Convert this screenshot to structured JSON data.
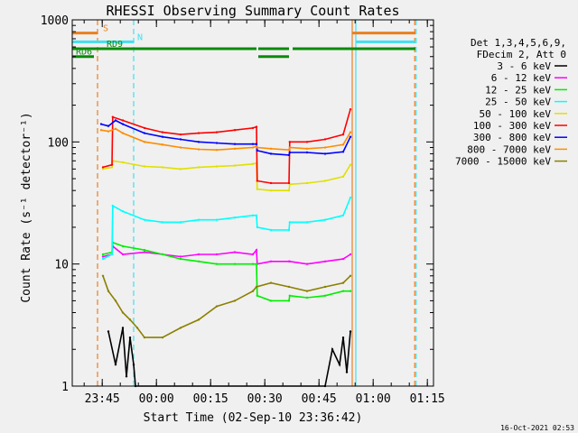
{
  "chart_data": {
    "type": "line",
    "title": "RHESSI Observing Summary Count Rates",
    "xlabel": "Start Time (02-Sep-10 23:36:42)",
    "ylabel": "Count Rate (s⁻¹ detector⁻¹)",
    "yscale": "log",
    "ylim": [
      1,
      1000
    ],
    "xlim_minutes": [
      0,
      100
    ],
    "grid": false,
    "legend_placement": "right",
    "legend_header": [
      "Det 1,3,4,5,6,9,",
      "FDecim 2, Att 0"
    ],
    "timestamp": "16-Oct-2021 02:53",
    "x_ticks": [
      {
        "label": "23:45",
        "min": 8.3
      },
      {
        "label": "00:00",
        "min": 23.3
      },
      {
        "label": "00:15",
        "min": 38.3
      },
      {
        "label": "00:30",
        "min": 53.3
      },
      {
        "label": "00:45",
        "min": 68.3
      },
      {
        "label": "01:00",
        "min": 83.3
      },
      {
        "label": "01:15",
        "min": 98.3
      }
    ],
    "y_ticks": [
      {
        "label": "1",
        "value": 1
      },
      {
        "label": "10",
        "value": 10
      },
      {
        "label": "100",
        "value": 100
      },
      {
        "label": "1000",
        "value": 1000
      }
    ],
    "flag_bars": [
      {
        "label": "S",
        "color": "#e88020",
        "segments": [
          [
            0,
            7
          ],
          [
            77.5,
            95
          ]
        ],
        "level": 780,
        "label_min": 8.5
      },
      {
        "label": "N",
        "color": "#40e0f0",
        "segments": [
          [
            0,
            17
          ],
          [
            78.5,
            95
          ]
        ],
        "level": 660,
        "label_min": 18
      },
      {
        "label": "RD9",
        "color": "#0a8a0a",
        "segments": [
          [
            0,
            51
          ],
          [
            51.5,
            60
          ],
          [
            61,
            95
          ]
        ],
        "level": 580,
        "label_min": 9.5
      },
      {
        "label": "RD6",
        "color": "#0a8a0a",
        "segments": [
          [
            0,
            6
          ],
          [
            51.5,
            60
          ]
        ],
        "level": 500,
        "label_min": 1
      }
    ],
    "vertical_markers": [
      {
        "min": 7,
        "color": "#e88020"
      },
      {
        "min": 17,
        "color": "#40e0f0"
      },
      {
        "min": 77.5,
        "color": "#e88020"
      },
      {
        "min": 78.5,
        "color": "#40e0f0"
      },
      {
        "min": 94.8,
        "color": "#e88020"
      },
      {
        "min": 95.2,
        "color": "#40e0f0"
      }
    ],
    "series": [
      {
        "name": "3 - 6 keV",
        "color": "#000000",
        "x": [
          10,
          12,
          14,
          15,
          16,
          17,
          17.5,
          70,
          72,
          74,
          75,
          76,
          77
        ],
        "y": [
          2.8,
          1.5,
          3,
          1.2,
          2.5,
          1.5,
          1,
          1,
          2,
          1.5,
          2.5,
          1.3,
          2.8
        ]
      },
      {
        "name": "6 - 12 keV",
        "color": "#ff00ff",
        "x": [
          8.5,
          11,
          11.2,
          14,
          20,
          25,
          30,
          35,
          40,
          45,
          50,
          51,
          51.2,
          55,
          60,
          60.2,
          65,
          70,
          75,
          77
        ],
        "y": [
          11.5,
          12,
          14,
          12,
          12.5,
          12,
          11.5,
          12,
          12,
          12.5,
          12,
          13,
          10,
          10.5,
          10.5,
          10.5,
          10,
          10.5,
          11,
          12
        ]
      },
      {
        "name": "12 - 25 keV",
        "color": "#00ee00",
        "x": [
          8.5,
          11,
          11.2,
          14,
          20,
          25,
          30,
          35,
          40,
          45,
          50,
          51,
          51.2,
          55,
          60,
          60.2,
          65,
          70,
          75,
          77
        ],
        "y": [
          12,
          12.5,
          15,
          14,
          13,
          12,
          11,
          10.5,
          10,
          10,
          10,
          10,
          5.5,
          5,
          5,
          5.5,
          5.3,
          5.5,
          6,
          6
        ]
      },
      {
        "name": "25 - 50 keV",
        "color": "#00ffff",
        "x": [
          8.5,
          11,
          11.2,
          14,
          20,
          25,
          30,
          35,
          40,
          45,
          50,
          51,
          51.2,
          55,
          60,
          60.2,
          65,
          70,
          75,
          77
        ],
        "y": [
          11,
          12,
          30,
          27,
          23,
          22,
          22,
          23,
          23,
          24,
          25,
          25,
          20,
          19,
          19,
          22,
          22,
          23,
          25,
          35
        ]
      },
      {
        "name": "50 - 100 keV",
        "color": "#e0e000",
        "x": [
          8.5,
          11,
          11.2,
          14,
          20,
          25,
          30,
          35,
          40,
          45,
          50,
          51,
          51.2,
          55,
          60,
          60.2,
          65,
          70,
          75,
          77
        ],
        "y": [
          60,
          62,
          70,
          68,
          63,
          62,
          60,
          62,
          63,
          64,
          66,
          67,
          41,
          40,
          40,
          45,
          46,
          48,
          52,
          65
        ]
      },
      {
        "name": "100 - 300 keV",
        "color": "#ff0000",
        "x": [
          8.5,
          11,
          11.2,
          14,
          20,
          25,
          30,
          35,
          40,
          45,
          50,
          51,
          51.2,
          55,
          60,
          60.2,
          65,
          70,
          75,
          77
        ],
        "y": [
          62,
          65,
          160,
          150,
          130,
          120,
          115,
          118,
          120,
          125,
          130,
          133,
          48,
          46,
          46,
          100,
          100,
          105,
          115,
          185
        ]
      },
      {
        "name": "300 - 800 keV",
        "color": "#0000ff",
        "x": [
          8,
          10,
          12,
          14,
          20,
          25,
          30,
          35,
          40,
          45,
          50,
          51,
          51.2,
          55,
          60,
          60.2,
          65,
          70,
          75,
          77
        ],
        "y": [
          140,
          135,
          150,
          140,
          118,
          110,
          105,
          100,
          98,
          96,
          96,
          96,
          85,
          80,
          78,
          82,
          82,
          80,
          83,
          110
        ]
      },
      {
        "name": "800 - 7000 keV",
        "color": "#ff8c00",
        "x": [
          8,
          10,
          12,
          14,
          20,
          25,
          30,
          35,
          40,
          45,
          50,
          51,
          51.2,
          55,
          60,
          60.2,
          65,
          70,
          75,
          77
        ],
        "y": [
          125,
          122,
          128,
          118,
          100,
          95,
          90,
          87,
          86,
          88,
          90,
          92,
          90,
          88,
          86,
          90,
          88,
          90,
          95,
          120
        ]
      },
      {
        "name": "7000 - 15000 keV",
        "color": "#8b8000",
        "x": [
          8.5,
          10,
          12,
          14,
          16,
          18,
          20,
          25,
          30,
          35,
          40,
          45,
          50,
          51,
          55,
          60,
          65,
          70,
          75,
          77
        ],
        "y": [
          8,
          6,
          5,
          4,
          3.5,
          3,
          2.5,
          2.5,
          3,
          3.5,
          4.5,
          5,
          6,
          6.5,
          7,
          6.5,
          6,
          6.5,
          7,
          8
        ]
      }
    ]
  }
}
